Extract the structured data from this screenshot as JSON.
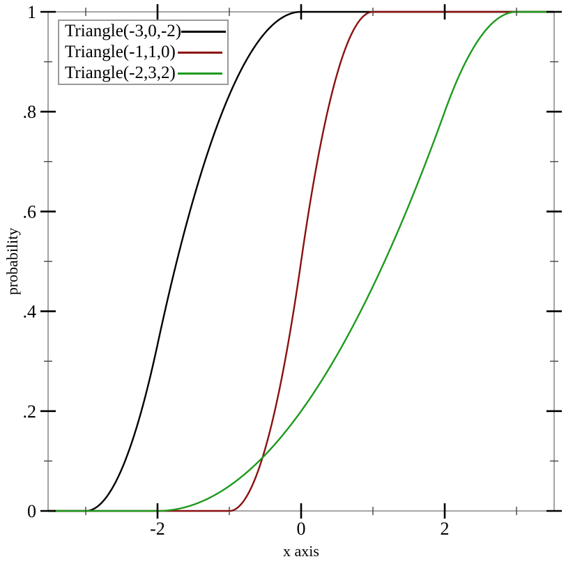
{
  "figure": {
    "xlabel": "x axis",
    "ylabel": "probability"
  },
  "legend": {
    "items": [
      {
        "label": "Triangle(-3,0,-2)",
        "color": "#000000"
      },
      {
        "label": "Triangle(-1,1,0)",
        "color": "#8b1010"
      },
      {
        "label": "Triangle(-2,3,2)",
        "color": "#1d9a1d"
      }
    ]
  },
  "colors": {
    "frame": "#999999",
    "major_tick": "#000000",
    "minor_tick": "#444444",
    "text": "#000000",
    "background": "#ffffff"
  },
  "chart_data": {
    "type": "line",
    "title": "",
    "xlabel": "x axis",
    "ylabel": "probability",
    "xlim": [
      -3.524,
      3.524
    ],
    "ylim": [
      0,
      1
    ],
    "grid": false,
    "legend_position": "top-left",
    "x_major_ticks": {
      "values": [
        -2,
        0,
        2
      ],
      "labels": [
        "-2",
        "0",
        "2"
      ]
    },
    "x_minor_ticks": [
      -3,
      -1,
      1,
      3
    ],
    "y_major_ticks": {
      "values": [
        0,
        0.2,
        0.4,
        0.6,
        0.8,
        1
      ],
      "labels": [
        "0",
        ".2",
        ".4",
        ".6",
        ".8",
        "1"
      ]
    },
    "y_minor_ticks": [
      0.1,
      0.3,
      0.5,
      0.7,
      0.9
    ],
    "series": [
      {
        "name": "Triangle(-3,0,-2)",
        "curve": "cdf",
        "distribution": "triangular",
        "min": -3,
        "max": 0,
        "mode": -2,
        "color": "#000000",
        "points": [
          [
            -3,
            0
          ],
          [
            -2.5,
            0.0833
          ],
          [
            -2,
            0.3333
          ],
          [
            -1.5,
            0.625
          ],
          [
            -1,
            0.8333
          ],
          [
            -0.5,
            0.9583
          ],
          [
            0,
            1
          ]
        ]
      },
      {
        "name": "Triangle(-1,1,0)",
        "curve": "cdf",
        "distribution": "triangular",
        "min": -1,
        "max": 1,
        "mode": 0,
        "color": "#8b1010",
        "points": [
          [
            -1,
            0
          ],
          [
            -0.5,
            0.125
          ],
          [
            0,
            0.5
          ],
          [
            0.5,
            0.875
          ],
          [
            1,
            1
          ]
        ]
      },
      {
        "name": "Triangle(-2,3,2)",
        "curve": "cdf",
        "distribution": "triangular",
        "min": -2,
        "max": 3,
        "mode": 2,
        "color": "#1d9a1d",
        "points": [
          [
            -2,
            0
          ],
          [
            -1,
            0.05
          ],
          [
            0,
            0.2
          ],
          [
            1,
            0.45
          ],
          [
            2,
            0.8
          ],
          [
            2.5,
            0.95
          ],
          [
            3,
            1
          ]
        ]
      }
    ]
  }
}
